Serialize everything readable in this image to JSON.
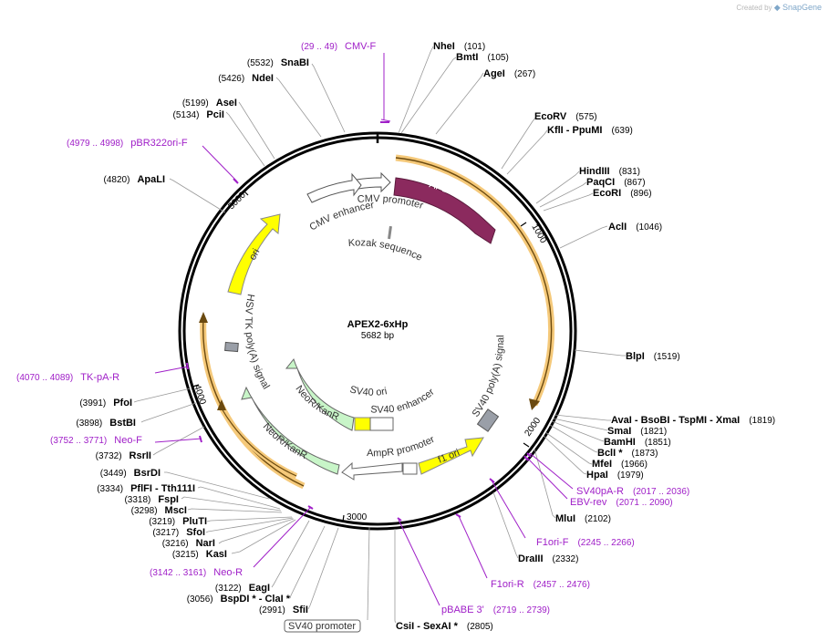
{
  "brand": {
    "created_by": "Created by",
    "app": "SnapGene"
  },
  "plasmid": {
    "name": "APEX2-6xHp",
    "length": "5682 bp"
  },
  "scale_ticks": [
    "1000",
    "2000",
    "3000",
    "4000",
    "5000"
  ],
  "sites": [
    {
      "label": "NheI",
      "pos": "(101)"
    },
    {
      "label": "BmtI",
      "pos": "(105)"
    },
    {
      "label": "AgeI",
      "pos": "(267)"
    },
    {
      "label": "EcoRV",
      "pos": "(575)"
    },
    {
      "label": "KflI   - PpuMI",
      "pos": "(639)"
    },
    {
      "label": "HindIII",
      "pos": "(831)"
    },
    {
      "label": "PaqCI",
      "pos": "(867)"
    },
    {
      "label": "EcoRI",
      "pos": "(896)"
    },
    {
      "label": "AclI",
      "pos": "(1046)"
    },
    {
      "label": "BlpI",
      "pos": "(1519)"
    },
    {
      "label": "AvaI    - BsoBI    - TspMI   - XmaI",
      "pos": "(1819)"
    },
    {
      "label": "SmaI",
      "pos": "(1821)"
    },
    {
      "label": "BamHI",
      "pos": "(1851)"
    },
    {
      "label": "BclI *",
      "pos": "(1873)"
    },
    {
      "label": "MfeI",
      "pos": "(1966)"
    },
    {
      "label": "HpaI",
      "pos": "(1979)"
    },
    {
      "label": "MluI",
      "pos": "(2102)"
    },
    {
      "label": "DraIII",
      "pos": "(2332)"
    },
    {
      "label": "CsiI   - SexAI *",
      "pos": "(2805)"
    },
    {
      "label": "SfiI",
      "pos": "(2991)"
    },
    {
      "label": "BspDI *  - ClaI *",
      "pos": "(3056)"
    },
    {
      "label": "EagI",
      "pos": "(3122)"
    },
    {
      "label": "KasI",
      "pos": "(3215)"
    },
    {
      "label": "NarI",
      "pos": "(3216)"
    },
    {
      "label": "SfoI",
      "pos": "(3217)"
    },
    {
      "label": "PluTI",
      "pos": "(3219)"
    },
    {
      "label": "MscI",
      "pos": "(3298)"
    },
    {
      "label": "FspI",
      "pos": "(3318)"
    },
    {
      "label": "PflFI   - Tth111I",
      "pos": "(3334)"
    },
    {
      "label": "BsrDI",
      "pos": "(3449)"
    },
    {
      "label": "RsrII",
      "pos": "(3732)"
    },
    {
      "label": "BstBI",
      "pos": "(3898)"
    },
    {
      "label": "PfoI",
      "pos": "(3991)"
    },
    {
      "label": "ApaLI",
      "pos": "(4820)"
    },
    {
      "label": "PciI",
      "pos": "(5134)"
    },
    {
      "label": "AseI",
      "pos": "(5199)"
    },
    {
      "label": "NdeI",
      "pos": "(5426)"
    },
    {
      "label": "SnaBI",
      "pos": "(5532)"
    }
  ],
  "primers": [
    {
      "label": "CMV-F",
      "pos": "(29 .. 49)"
    },
    {
      "label": "pBR322ori-F",
      "pos": "(4979 .. 4998)"
    },
    {
      "label": "SV40pA-R",
      "pos": "(2017 .. 2036)"
    },
    {
      "label": "EBV-rev",
      "pos": "(2071 .. 2090)"
    },
    {
      "label": "F1ori-F",
      "pos": "(2245 .. 2266)"
    },
    {
      "label": "F1ori-R",
      "pos": "(2457 .. 2476)"
    },
    {
      "label": "pBABE 3'",
      "pos": "(2719 .. 2739)"
    },
    {
      "label": "Neo-R",
      "pos": "(3142 .. 3161)"
    },
    {
      "label": "Neo-F",
      "pos": "(3752 .. 3771)"
    },
    {
      "label": "TK-pA-R",
      "pos": "(4070 .. 4089)"
    }
  ],
  "features": {
    "apex2": "APEX2",
    "cmv_promoter": "CMV promoter",
    "cmv_enhancer": "CMV enhancer",
    "kozak": "Kozak sequence",
    "ori": "ori",
    "hsv_tk": "HSV TK poly(A) signal",
    "sv40_polya": "SV40 poly(A) signal",
    "neokanr_outer": "NeoR/KanR",
    "neokanr_inner": "NeoR/KanR",
    "sv40_ori": "SV40 ori",
    "sv40_enhancer": "SV40 enhancer",
    "ampr_promoter": "AmpR promoter",
    "f1_ori": "f1 ori",
    "sv40_promoter": "SV40 promoter"
  },
  "colors": {
    "apex2": "#8b2a5e",
    "ori": "#ffff00",
    "f1_ori": "#ffff00",
    "neokanr": "#c8f5c8",
    "primer": "#a020c8",
    "orf_highlight": "#f5c97a",
    "backbone": "#000000"
  }
}
